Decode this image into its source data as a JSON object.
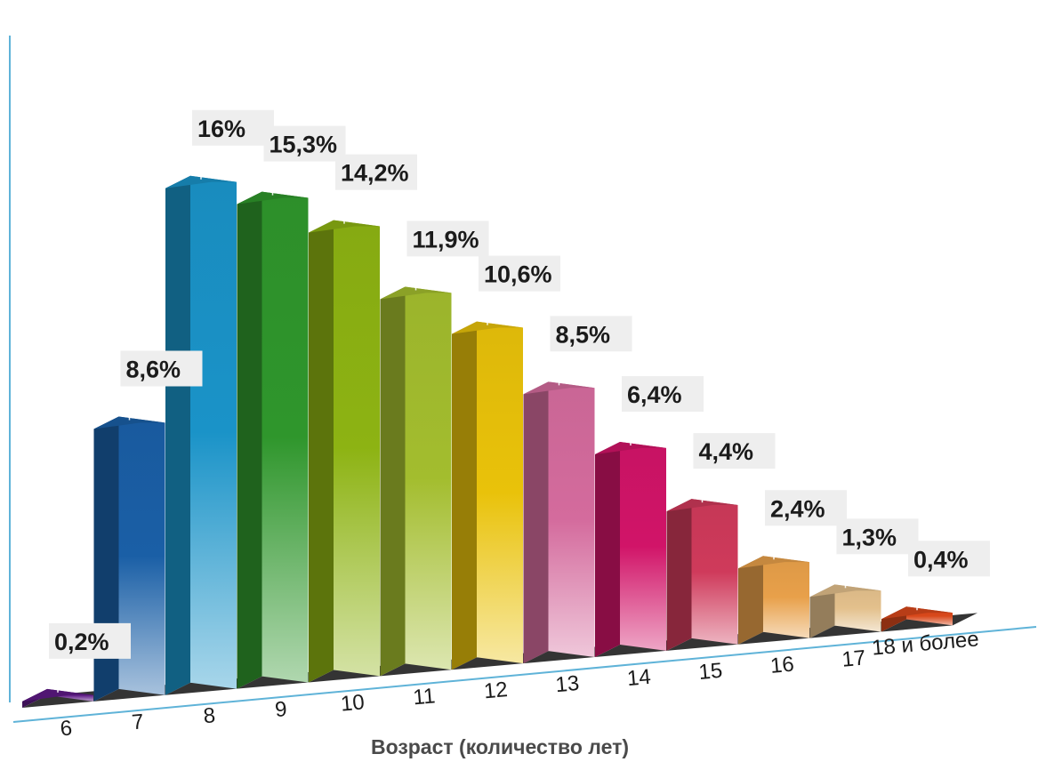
{
  "chart_data": {
    "type": "bar",
    "xlabel": "Возраст (количество лет)",
    "categories": [
      "6",
      "7",
      "8",
      "9",
      "10",
      "11",
      "12",
      "13",
      "14",
      "15",
      "16",
      "17",
      "18 и более"
    ],
    "values": [
      0.2,
      8.6,
      16,
      15.3,
      14.2,
      11.9,
      10.6,
      8.5,
      6.4,
      4.4,
      2.4,
      1.3,
      0.4
    ],
    "data_labels": [
      "0,2%",
      "8,6%",
      "16%",
      "15,3%",
      "14,2%",
      "11,9%",
      "10,6%",
      "8,5%",
      "6,4%",
      "4,4%",
      "2,4%",
      "1,3%",
      "0,4%"
    ],
    "colors": [
      "#5e1a86",
      "#1a5fa6",
      "#1a93c8",
      "#2f962c",
      "#8db313",
      "#a3bd2e",
      "#e9c20a",
      "#d46b9d",
      "#d11468",
      "#cf3a5b",
      "#e8a04a",
      "#e3c08c",
      "#d8481b"
    ],
    "ylim": [
      0,
      16
    ],
    "grid": false,
    "legend": "none"
  }
}
